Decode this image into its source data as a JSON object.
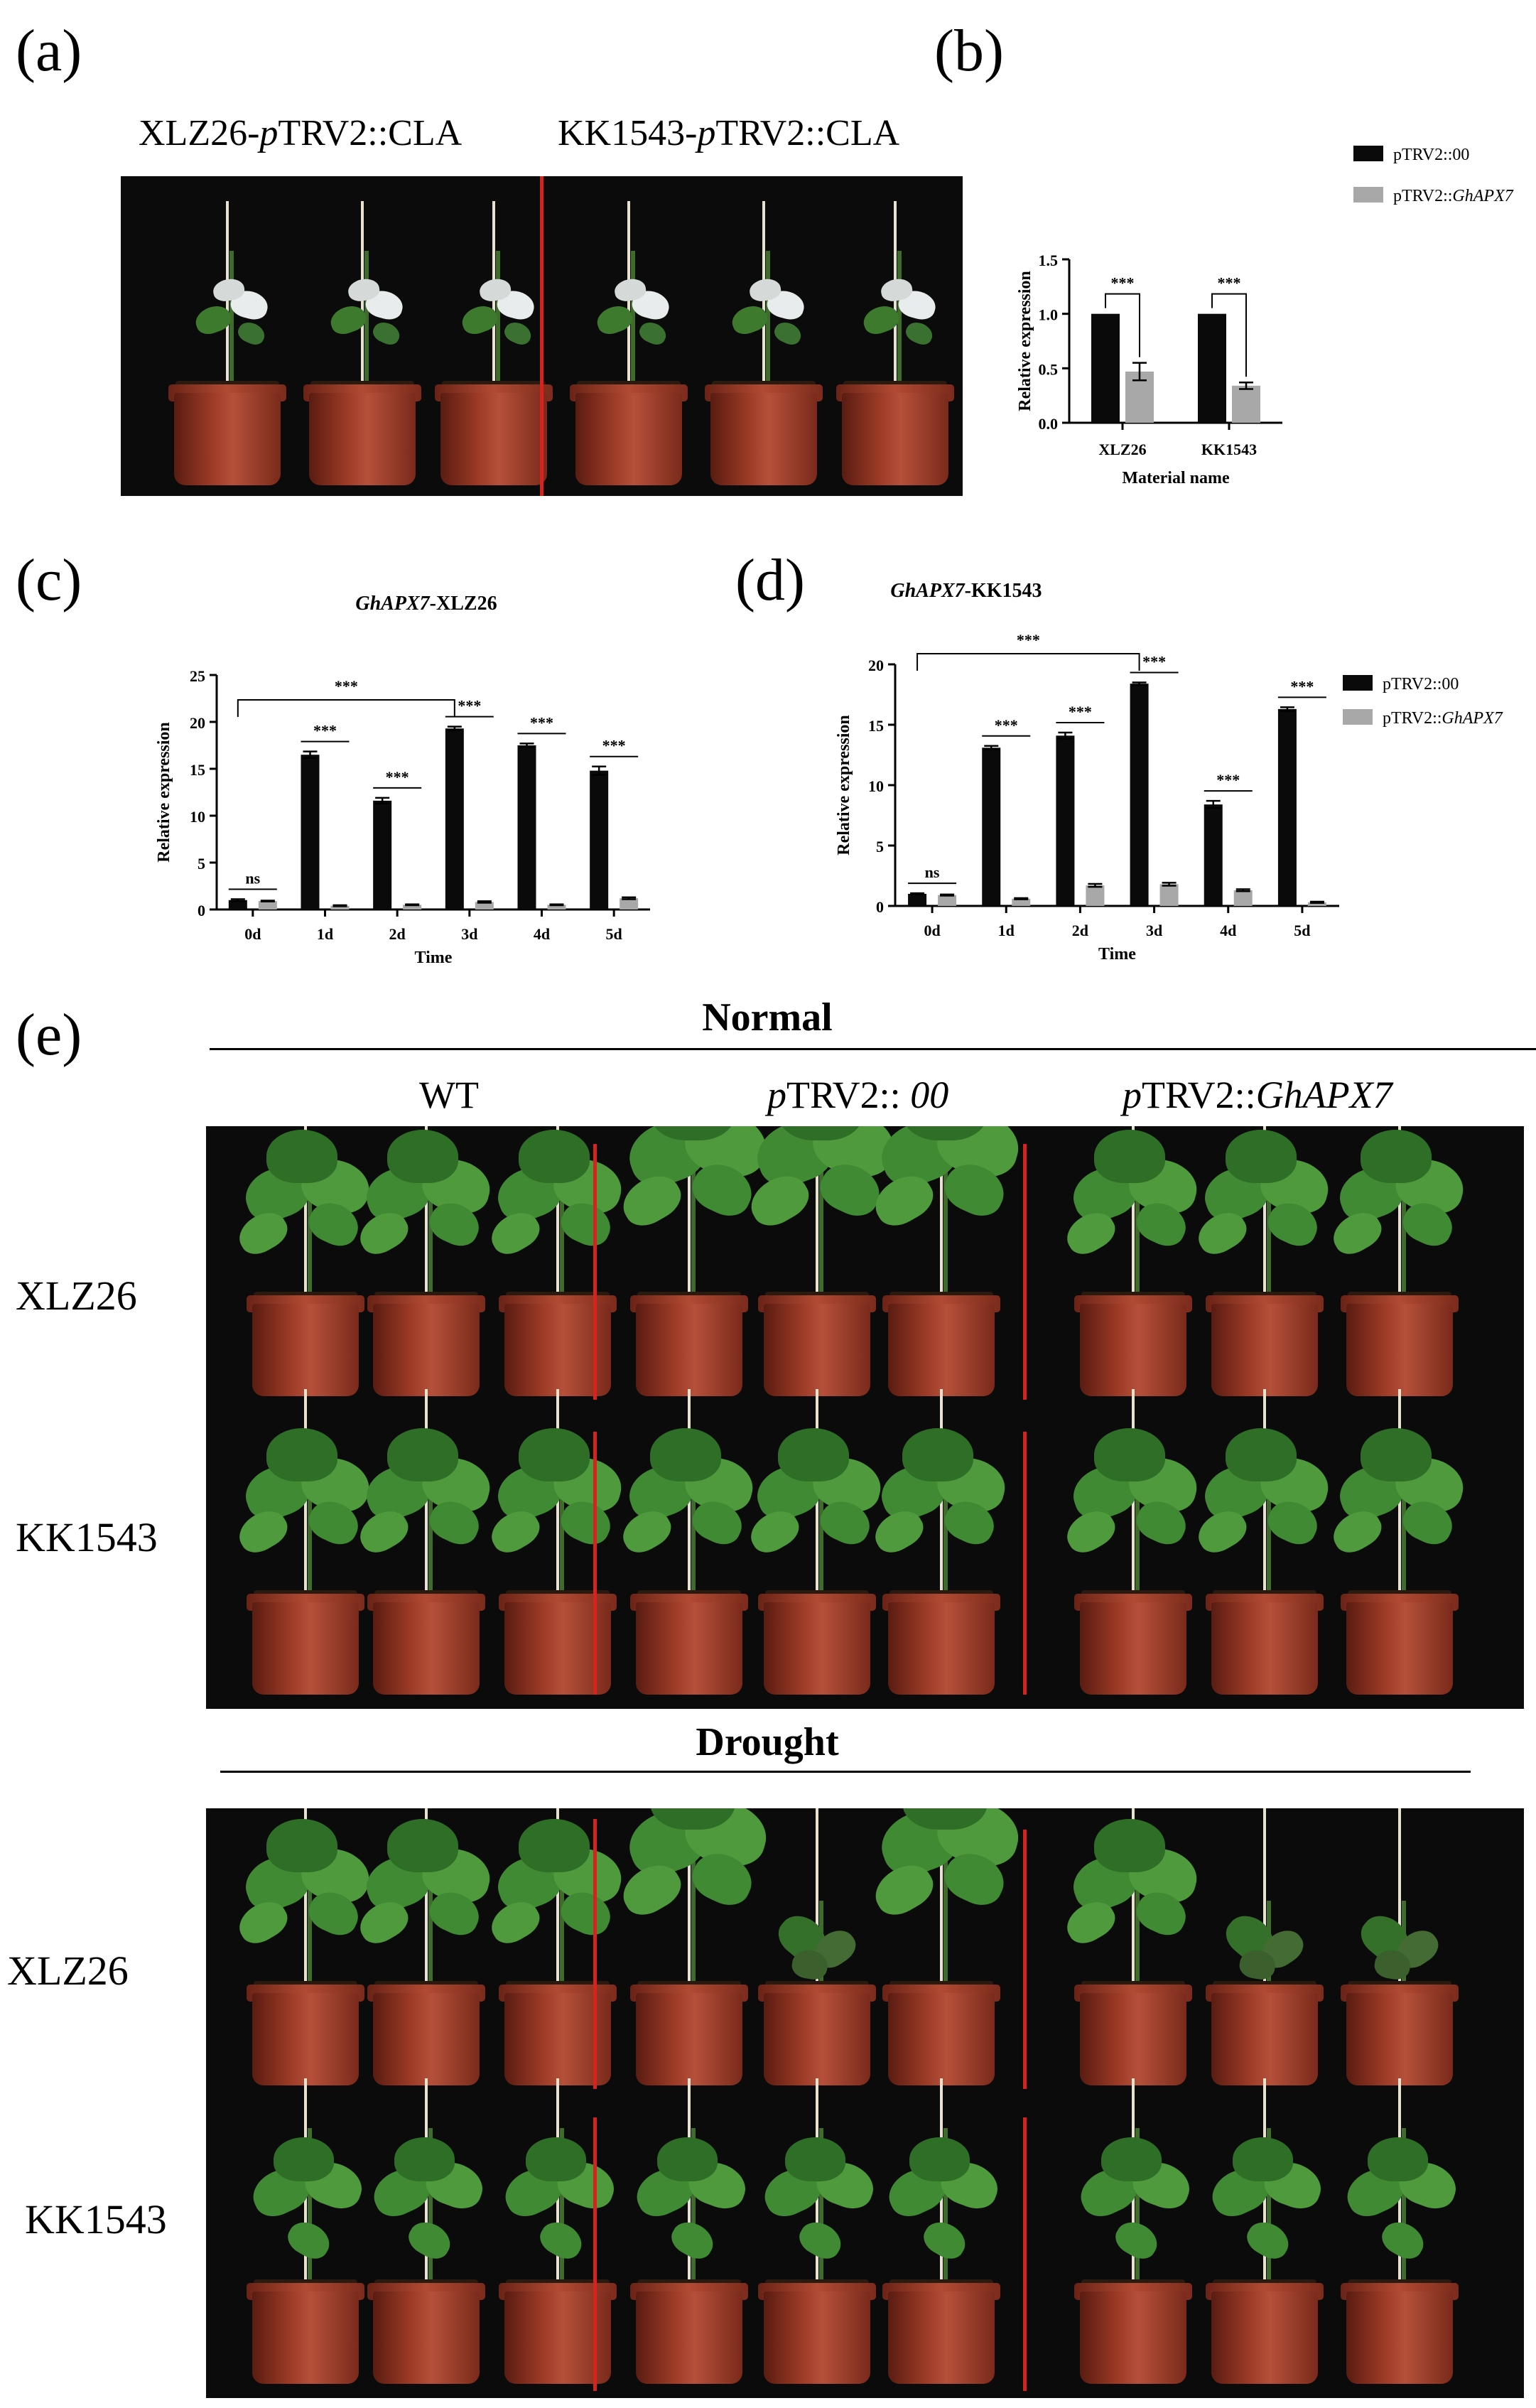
{
  "panel_letters": {
    "a": "(a)",
    "b": "(b)",
    "c": "(c)",
    "d": "(d)",
    "e": "(e)"
  },
  "panel_a": {
    "title_left_prefix": "XLZ26-",
    "title_left_italic": "p",
    "title_left_suffix": "TRV2::CLA",
    "title_right_prefix": "KK1543-",
    "title_right_italic": "p",
    "title_right_suffix": "TRV2::CLA"
  },
  "chart_data": [
    {
      "id": "b",
      "type": "bar",
      "categories": [
        "XLZ26",
        "KK1543"
      ],
      "series": [
        {
          "name": "pTRV2::00",
          "values": [
            1.0,
            1.0
          ],
          "errors": [
            0,
            0
          ]
        },
        {
          "name": "pTRV2::GhAPX7",
          "values": [
            0.47,
            0.34
          ],
          "errors": [
            0.08,
            0.03
          ]
        }
      ],
      "xlabel": "Material name",
      "ylabel": "Relative expression",
      "ylim": [
        0,
        1.5
      ],
      "yticks": [
        "0.0",
        "0.5",
        "1.0",
        "1.5"
      ],
      "significance": [
        "***",
        "***"
      ],
      "legend_placement": "right"
    },
    {
      "id": "c",
      "type": "bar",
      "title_italic": "GhAPX7",
      "title_suffix": "-XLZ26",
      "categories": [
        "0d",
        "1d",
        "2d",
        "3d",
        "4d",
        "5d"
      ],
      "series": [
        {
          "name": "pTRV2::00",
          "values": [
            1.0,
            16.5,
            11.6,
            19.3,
            17.5,
            14.8
          ],
          "errors": [
            0.1,
            0.35,
            0.3,
            0.2,
            0.2,
            0.45
          ]
        },
        {
          "name": "pTRV2::GhAPX7",
          "values": [
            0.9,
            0.4,
            0.5,
            0.8,
            0.5,
            1.2
          ],
          "errors": [
            0.05,
            0.05,
            0.05,
            0.08,
            0.05,
            0.1
          ]
        }
      ],
      "xlabel": "Time",
      "ylabel": "Relative expression",
      "ylim": [
        0,
        25
      ],
      "yticks": [
        "0",
        "5",
        "10",
        "15",
        "20",
        "25"
      ],
      "significance": [
        "ns",
        "***",
        "***",
        "***",
        "***",
        "***"
      ],
      "bracket_label": "***"
    },
    {
      "id": "d",
      "type": "bar",
      "title_italic": "GhAPX7",
      "title_suffix": "-KK1543",
      "categories": [
        "0d",
        "1d",
        "2d",
        "3d",
        "4d",
        "5d"
      ],
      "series": [
        {
          "name": "pTRV2::00",
          "values": [
            1.0,
            13.1,
            14.1,
            18.4,
            8.4,
            16.3
          ],
          "errors": [
            0.05,
            0.15,
            0.25,
            0.1,
            0.3,
            0.15
          ]
        },
        {
          "name": "pTRV2::GhAPX7",
          "values": [
            0.9,
            0.6,
            1.7,
            1.8,
            1.3,
            0.3
          ],
          "errors": [
            0.05,
            0.05,
            0.12,
            0.12,
            0.08,
            0.05
          ]
        }
      ],
      "xlabel": "Time",
      "ylabel": "Relative expression",
      "ylim": [
        0,
        20
      ],
      "yticks": [
        "0",
        "5",
        "10",
        "15",
        "20"
      ],
      "significance": [
        "ns",
        "***",
        "***",
        "***",
        "***",
        "***"
      ],
      "bracket_label": "***",
      "legend_placement": "right"
    }
  ],
  "legend": {
    "series1": "pTRV2::00",
    "series2_prefix": "pTRV2::",
    "series2_italic": "GhAPX7",
    "colors": {
      "series1": "#0a0a0a",
      "series2": "#a8a8a8"
    }
  },
  "panel_e": {
    "normal_title": "Normal",
    "drought_title": "Drought",
    "col1": "WT",
    "col2_italic_p": "p",
    "col2_mid": "TRV2:: ",
    "col2_italic_end": "00",
    "col3_italic_p": "p",
    "col3_mid": "TRV2::",
    "col3_italic_end": "GhAPX7",
    "rows": [
      "XLZ26",
      "KK1543",
      "XLZ26",
      "KK1543"
    ]
  }
}
